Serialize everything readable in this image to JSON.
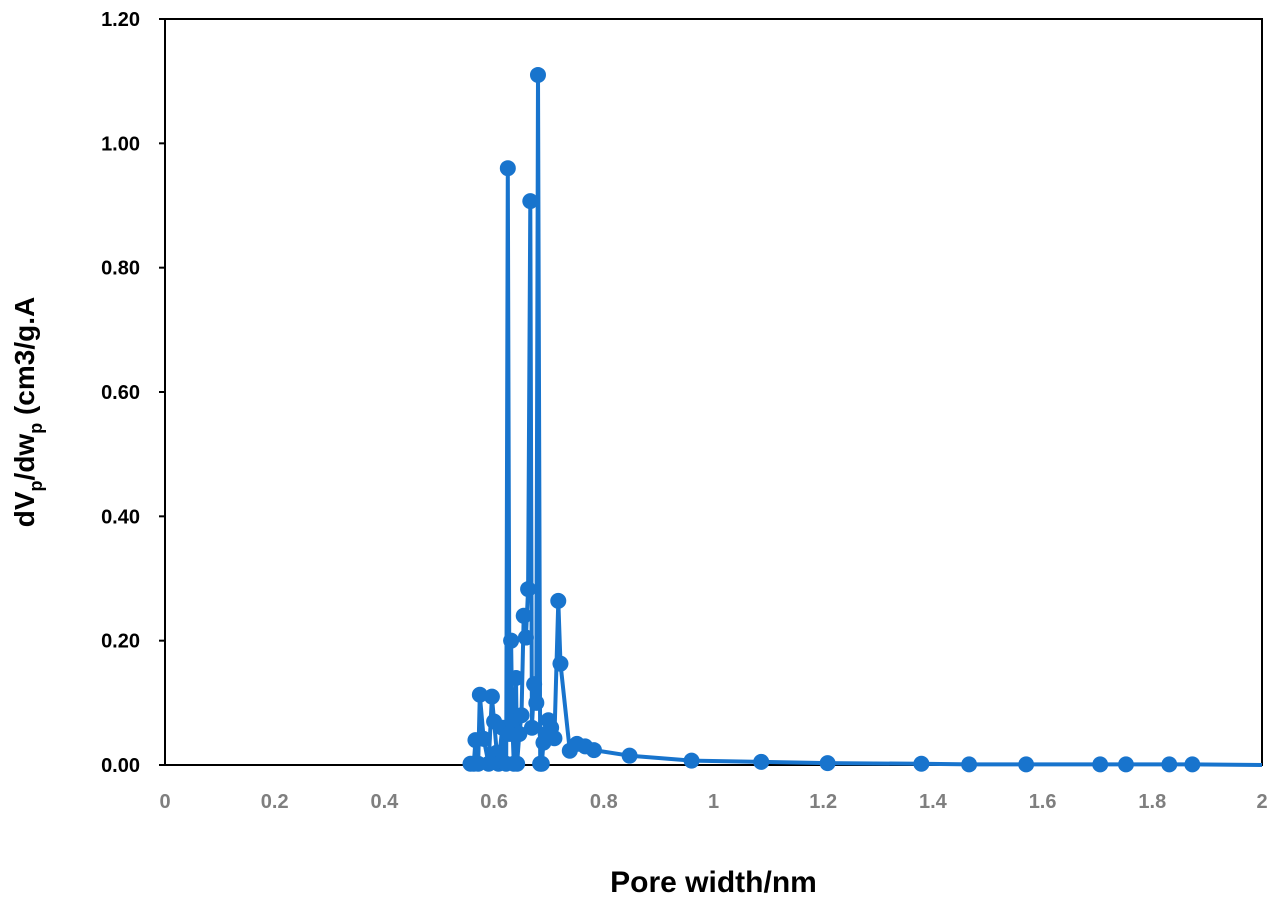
{
  "chart_data": {
    "type": "scatter",
    "title": "",
    "xlabel": "Pore width/nm",
    "ylabel": {
      "parts": [
        {
          "text": "dV",
          "sub": false
        },
        {
          "text": "p",
          "sub": true
        },
        {
          "text": "/dw",
          "sub": false
        },
        {
          "text": "p",
          "sub": true
        },
        {
          "text": " (cm3/g.A",
          "sub": false
        }
      ]
    },
    "xlim": [
      0,
      2
    ],
    "ylim": [
      0,
      1.2
    ],
    "x_ticks": [
      "0",
      "0.2",
      "0.4",
      "0.6",
      "0.8",
      "1",
      "1.2",
      "1.4",
      "1.6",
      "1.8",
      "2"
    ],
    "y_ticks": [
      "0.00",
      "0.20",
      "0.40",
      "0.60",
      "0.80",
      "1.00",
      "1.20"
    ],
    "grid": false,
    "legend": "none",
    "series_color": "#1874cd",
    "series": [
      {
        "x": [
          0.557,
          0.563,
          0.566,
          0.571,
          0.574,
          0.581,
          0.59,
          0.596,
          0.6,
          0.605,
          0.608,
          0.615,
          0.622,
          0.625,
          0.628,
          0.631,
          0.633,
          0.636,
          0.64,
          0.642,
          0.646,
          0.65,
          0.654,
          0.658,
          0.662,
          0.666,
          0.669,
          0.673,
          0.677,
          0.68,
          0.684,
          0.687,
          0.69,
          0.694,
          0.699,
          0.704,
          0.71,
          0.717,
          0.721,
          0.738,
          0.751,
          0.766,
          0.782,
          0.847,
          0.96,
          1.087,
          1.208,
          1.379,
          1.466,
          1.57,
          1.705,
          1.752,
          1.831,
          1.873
        ],
        "y": [
          0.002,
          0.002,
          0.04,
          0.002,
          0.113,
          0.042,
          0.002,
          0.11,
          0.07,
          0.02,
          0.002,
          0.06,
          0.002,
          0.96,
          0.05,
          0.2,
          0.07,
          0.002,
          0.14,
          0.002,
          0.05,
          0.08,
          0.24,
          0.205,
          0.283,
          0.907,
          0.06,
          0.13,
          0.1,
          1.11,
          0.002,
          0.002,
          0.036,
          0.05,
          0.072,
          0.06,
          0.043,
          0.264,
          0.163,
          0.023,
          0.034,
          0.03,
          0.024,
          0.015,
          0.007,
          0.005,
          0.003,
          0.002,
          0.001,
          0.001,
          0.001,
          0.001,
          0.001,
          0.001
        ]
      }
    ]
  }
}
